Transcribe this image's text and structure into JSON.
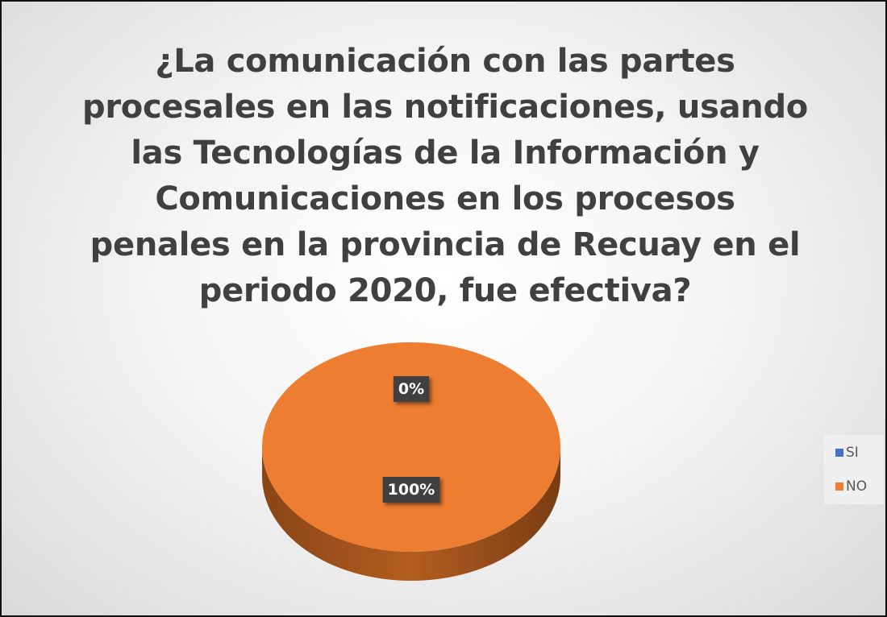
{
  "chart_data": {
    "type": "pie",
    "title": "¿La comunicación con las partes procesales en las notificaciones, usando las Tecnologías de la Información y Comunicaciones en los procesos penales en la provincia de Recuay en el periodo 2020, fue efectiva?",
    "categories": [
      "SI",
      "NO"
    ],
    "values": [
      0,
      100
    ],
    "value_labels": [
      "0%",
      "100%"
    ],
    "colors": [
      "#4472c4",
      "#ed7d31"
    ],
    "legend": "right"
  }
}
